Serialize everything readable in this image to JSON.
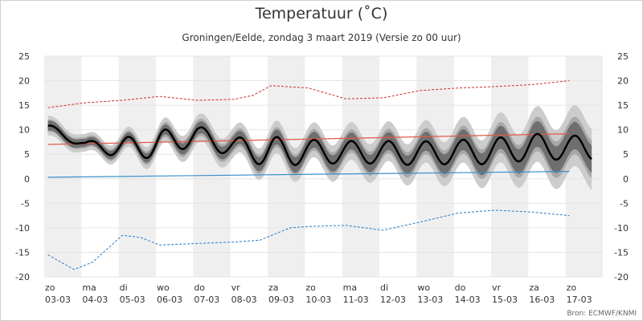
{
  "title": "Temperatuur (˚C)",
  "subtitle": "Groningen/Eelde, zondag 3 maart 2019 (Versie zo 00 uur)",
  "source": "Bron: ECMWF/KNMI",
  "colors": {
    "ensemble_outer": "#cccccc",
    "ensemble_mid": "#a8a8a8",
    "ensemble_inner": "#6f6f6f",
    "median": "#000000",
    "normal_max": "#e05a4a",
    "normal_min": "#3a8fc8",
    "record_max": "#d0302a",
    "record_min": "#2a7cc0",
    "weekend_band": "#efefef"
  },
  "chart_data": {
    "type": "line",
    "title": "Temperatuur (˚C)",
    "ylim": [
      -20,
      25
    ],
    "yticks": [
      -20,
      -15,
      -10,
      -5,
      0,
      5,
      10,
      15,
      20,
      25
    ],
    "x_labels": [
      {
        "day": "zo",
        "date": "03-03"
      },
      {
        "day": "ma",
        "date": "04-03"
      },
      {
        "day": "di",
        "date": "05-03"
      },
      {
        "day": "wo",
        "date": "06-03"
      },
      {
        "day": "do",
        "date": "07-03"
      },
      {
        "day": "vr",
        "date": "08-03"
      },
      {
        "day": "za",
        "date": "09-03"
      },
      {
        "day": "zo",
        "date": "10-03"
      },
      {
        "day": "ma",
        "date": "11-03"
      },
      {
        "day": "di",
        "date": "12-03"
      },
      {
        "day": "wo",
        "date": "13-03"
      },
      {
        "day": "do",
        "date": "14-03"
      },
      {
        "day": "vr",
        "date": "15-03"
      },
      {
        "day": "za",
        "date": "16-03"
      },
      {
        "day": "zo",
        "date": "17-03"
      }
    ],
    "shaded_day_indices": [
      0,
      2,
      4,
      6,
      8,
      10,
      12,
      14
    ],
    "median_max": [
      11.2,
      7.6,
      8.3,
      9.9,
      10.8,
      8.4,
      8.6,
      8.0,
      7.7,
      7.7,
      7.6,
      7.9,
      8.3,
      9.2,
      8.8
    ],
    "median_min": [
      9.3,
      6.3,
      4.1,
      4.3,
      7.1,
      4.3,
      2.3,
      3.1,
      3.1,
      3.1,
      2.7,
      3.1,
      2.9,
      3.9,
      3.9
    ],
    "inner_spread": [
      1.0,
      0.8,
      0.9,
      1.0,
      1.2,
      1.3,
      1.5,
      1.6,
      1.7,
      1.8,
      1.9,
      2.1,
      2.3,
      2.6,
      2.8
    ],
    "outer_spread": [
      2.0,
      1.8,
      2.0,
      2.4,
      2.8,
      3.0,
      3.3,
      3.5,
      3.8,
      4.0,
      4.3,
      4.6,
      5.0,
      5.6,
      6.2
    ],
    "normal_max": {
      "x": [
        0,
        14
      ],
      "y": [
        7.0,
        9.2
      ]
    },
    "normal_min": {
      "x": [
        0,
        14
      ],
      "y": [
        0.3,
        1.5
      ]
    },
    "record_max": {
      "x": [
        0,
        1,
        2,
        3,
        4,
        5,
        5.5,
        6,
        7,
        8,
        9,
        10,
        11,
        12,
        13,
        14
      ],
      "y": [
        14.5,
        15.5,
        16.0,
        16.8,
        16.0,
        16.2,
        17.0,
        19.0,
        18.5,
        16.3,
        16.5,
        18.0,
        18.5,
        18.8,
        19.2,
        20.0
      ]
    },
    "record_min": {
      "x": [
        0,
        0.7,
        1.2,
        2.0,
        2.5,
        3.0,
        4.0,
        5.0,
        5.7,
        6.5,
        7.0,
        8.0,
        9.0,
        10.0,
        11.0,
        12.0,
        13.0,
        14.0
      ],
      "y": [
        -15.5,
        -18.5,
        -17.0,
        -11.5,
        -12.0,
        -13.5,
        -13.2,
        -12.9,
        -12.5,
        -10.0,
        -9.7,
        -9.5,
        -10.5,
        -8.8,
        -7.0,
        -6.4,
        -6.8,
        -7.5
      ]
    }
  }
}
